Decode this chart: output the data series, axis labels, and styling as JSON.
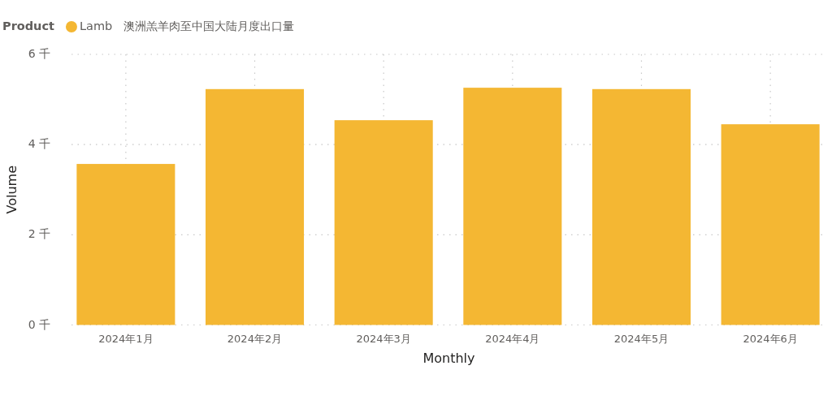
{
  "chart_data": {
    "type": "bar",
    "title": "澳洲羔羊肉至中国大陆月度出口量",
    "legend_title": "Product",
    "xlabel": "Monthly",
    "ylabel": "Volume",
    "categories": [
      "2024年1月",
      "2024年2月",
      "2024年3月",
      "2024年4月",
      "2024年5月",
      "2024年6月"
    ],
    "series": [
      {
        "name": "Lamb",
        "color": "#f4b733",
        "values": [
          3.57,
          5.23,
          4.54,
          5.26,
          5.23,
          4.45
        ]
      }
    ],
    "ylim": [
      0,
      6
    ],
    "yticks": [
      {
        "value": 0,
        "label": "0 千"
      },
      {
        "value": 2,
        "label": "2 千"
      },
      {
        "value": 4,
        "label": "4 千"
      },
      {
        "value": 6,
        "label": "6 千"
      }
    ],
    "grid": true,
    "legend": "top left"
  }
}
